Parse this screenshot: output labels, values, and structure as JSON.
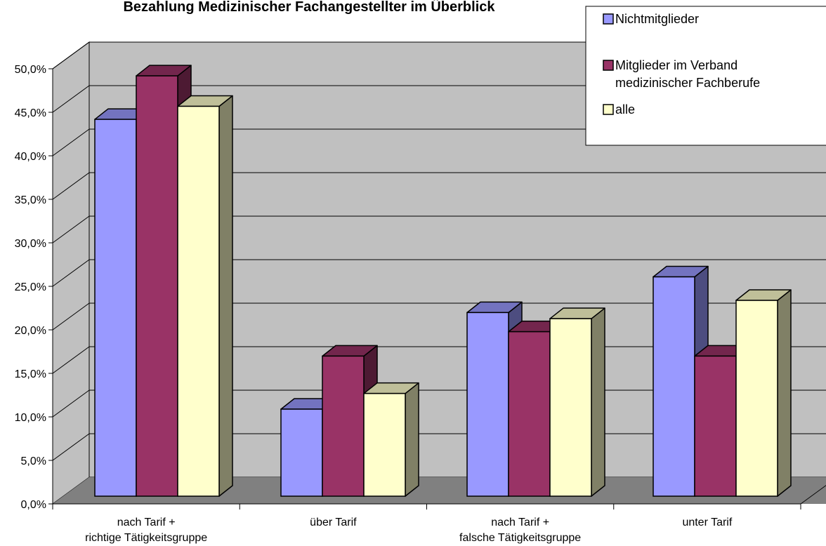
{
  "chart_data": {
    "type": "bar",
    "title": "Bezahlung Medizinischer Fachangestellter im Überblick",
    "categories": [
      [
        "nach Tarif +",
        "richtige Tätigkeitsgruppe"
      ],
      [
        "über Tarif"
      ],
      [
        "nach Tarif +",
        "falsche Tätigkeitsgruppe"
      ],
      [
        "unter Tarif"
      ]
    ],
    "series": [
      {
        "name": "Nichtmitglieder",
        "values": [
          43.3,
          10.0,
          21.1,
          25.2
        ],
        "color": "#9999ff"
      },
      {
        "name": [
          "Mitglieder im Verband",
          "medizinischer Fachberufe"
        ],
        "values": [
          48.3,
          16.1,
          18.9,
          16.1
        ],
        "color": "#993366"
      },
      {
        "name": "alle",
        "values": [
          44.8,
          11.8,
          20.4,
          22.5
        ],
        "color": "#ffffcc"
      }
    ],
    "ylim": [
      0,
      50
    ],
    "yticks": [
      "0,0%",
      "5,0%",
      "10,0%",
      "15,0%",
      "20,0%",
      "25,0%",
      "30,0%",
      "35,0%",
      "40,0%",
      "45,0%",
      "50,0%"
    ],
    "grid": true,
    "legend_position": "top-right",
    "wall_color": "#c0c0c0",
    "floor_color": "#808080"
  }
}
